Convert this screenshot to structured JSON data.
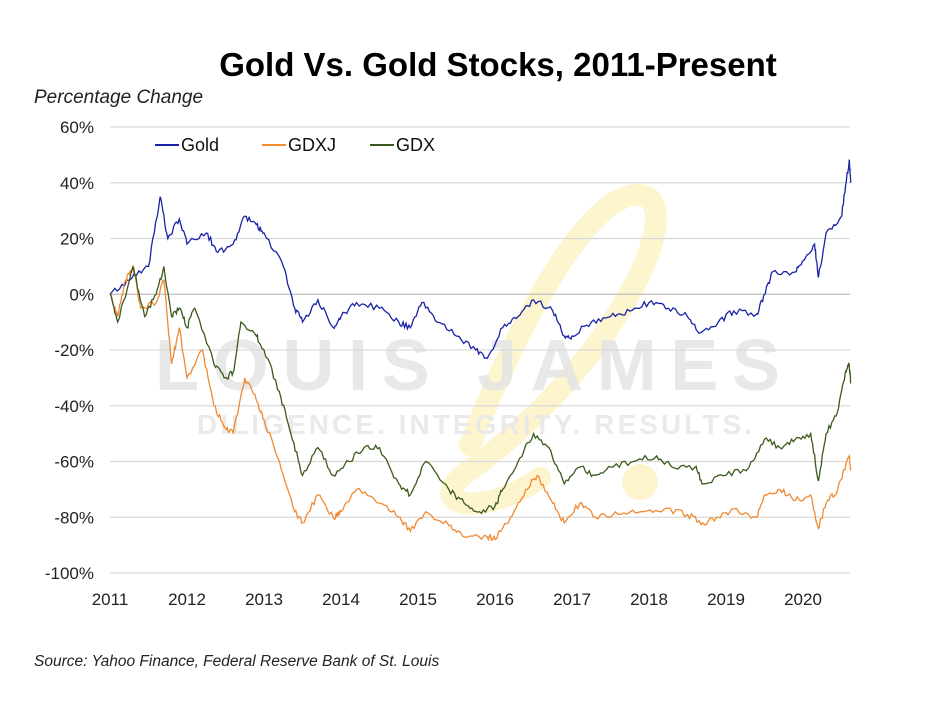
{
  "chart_data": {
    "type": "line",
    "title": "Gold Vs. Gold Stocks, 2011-Present",
    "ylabel": "Percentage Change",
    "xlabel": "",
    "source": "Source: Yahoo Finance, Federal Reserve Bank of St. Louis",
    "watermark": {
      "name": "LOUIS JAMES",
      "tagline": "DILIGENCE. INTEGRITY. RESULTS.",
      "monogram": "ℒ"
    },
    "xlim": [
      2011,
      2020.65
    ],
    "ylim": [
      -100,
      60
    ],
    "x_ticks": [
      "2011",
      "2012",
      "2013",
      "2014",
      "2015",
      "2016",
      "2017",
      "2018",
      "2019",
      "2020"
    ],
    "y_ticks": [
      "60%",
      "40%",
      "20%",
      "0%",
      "-20%",
      "-40%",
      "-60%",
      "-80%",
      "-100%"
    ],
    "y_tick_values": [
      60,
      40,
      20,
      0,
      -20,
      -40,
      -60,
      -80,
      -100
    ],
    "grid": "horizontal",
    "legend_position": "top-left",
    "series": [
      {
        "name": "Gold",
        "color": "#1a23a8",
        "points": [
          [
            2011.0,
            0
          ],
          [
            2011.25,
            5
          ],
          [
            2011.5,
            10
          ],
          [
            2011.65,
            35
          ],
          [
            2011.75,
            20
          ],
          [
            2011.9,
            27
          ],
          [
            2012.0,
            18
          ],
          [
            2012.25,
            22
          ],
          [
            2012.4,
            15
          ],
          [
            2012.6,
            18
          ],
          [
            2012.75,
            28
          ],
          [
            2012.9,
            25
          ],
          [
            2013.0,
            22
          ],
          [
            2013.25,
            10
          ],
          [
            2013.4,
            -5
          ],
          [
            2013.5,
            -10
          ],
          [
            2013.7,
            -2
          ],
          [
            2013.9,
            -12
          ],
          [
            2014.0,
            -8
          ],
          [
            2014.2,
            -3
          ],
          [
            2014.5,
            -5
          ],
          [
            2014.75,
            -10
          ],
          [
            2014.9,
            -12
          ],
          [
            2015.05,
            -3
          ],
          [
            2015.25,
            -10
          ],
          [
            2015.5,
            -15
          ],
          [
            2015.75,
            -20
          ],
          [
            2015.9,
            -23
          ],
          [
            2016.1,
            -12
          ],
          [
            2016.3,
            -8
          ],
          [
            2016.5,
            -2
          ],
          [
            2016.75,
            -6
          ],
          [
            2016.9,
            -15
          ],
          [
            2017.0,
            -15
          ],
          [
            2017.25,
            -10
          ],
          [
            2017.5,
            -8
          ],
          [
            2017.75,
            -6
          ],
          [
            2018.0,
            -3
          ],
          [
            2018.25,
            -5
          ],
          [
            2018.5,
            -8
          ],
          [
            2018.65,
            -14
          ],
          [
            2018.9,
            -10
          ],
          [
            2019.1,
            -6
          ],
          [
            2019.4,
            -7
          ],
          [
            2019.5,
            0
          ],
          [
            2019.6,
            8
          ],
          [
            2019.9,
            8
          ],
          [
            2020.0,
            12
          ],
          [
            2020.15,
            18
          ],
          [
            2020.2,
            6
          ],
          [
            2020.3,
            22
          ],
          [
            2020.5,
            28
          ],
          [
            2020.55,
            38
          ],
          [
            2020.6,
            48
          ],
          [
            2020.62,
            40
          ]
        ]
      },
      {
        "name": "GDXJ",
        "color": "#f08a33",
        "points": [
          [
            2011.0,
            0
          ],
          [
            2011.1,
            -8
          ],
          [
            2011.2,
            5
          ],
          [
            2011.3,
            10
          ],
          [
            2011.4,
            -5
          ],
          [
            2011.6,
            -3
          ],
          [
            2011.7,
            5
          ],
          [
            2011.8,
            -25
          ],
          [
            2011.9,
            -12
          ],
          [
            2012.0,
            -30
          ],
          [
            2012.2,
            -20
          ],
          [
            2012.35,
            -40
          ],
          [
            2012.5,
            -48
          ],
          [
            2012.6,
            -50
          ],
          [
            2012.75,
            -30
          ],
          [
            2012.9,
            -38
          ],
          [
            2013.0,
            -45
          ],
          [
            2013.2,
            -60
          ],
          [
            2013.4,
            -78
          ],
          [
            2013.5,
            -82
          ],
          [
            2013.7,
            -72
          ],
          [
            2013.9,
            -80
          ],
          [
            2014.0,
            -78
          ],
          [
            2014.2,
            -70
          ],
          [
            2014.5,
            -75
          ],
          [
            2014.75,
            -80
          ],
          [
            2014.9,
            -85
          ],
          [
            2015.1,
            -78
          ],
          [
            2015.4,
            -83
          ],
          [
            2015.6,
            -87
          ],
          [
            2015.9,
            -87
          ],
          [
            2016.0,
            -88
          ],
          [
            2016.2,
            -80
          ],
          [
            2016.4,
            -70
          ],
          [
            2016.55,
            -65
          ],
          [
            2016.75,
            -75
          ],
          [
            2016.9,
            -82
          ],
          [
            2017.1,
            -75
          ],
          [
            2017.3,
            -80
          ],
          [
            2017.6,
            -79
          ],
          [
            2017.9,
            -78
          ],
          [
            2018.2,
            -77
          ],
          [
            2018.5,
            -79
          ],
          [
            2018.7,
            -82
          ],
          [
            2018.9,
            -80
          ],
          [
            2019.1,
            -77
          ],
          [
            2019.4,
            -80
          ],
          [
            2019.5,
            -72
          ],
          [
            2019.7,
            -70
          ],
          [
            2019.9,
            -74
          ],
          [
            2020.1,
            -72
          ],
          [
            2020.2,
            -84
          ],
          [
            2020.3,
            -75
          ],
          [
            2020.45,
            -70
          ],
          [
            2020.6,
            -58
          ],
          [
            2020.62,
            -63
          ]
        ]
      },
      {
        "name": "GDX",
        "color": "#3a5a1e",
        "points": [
          [
            2011.0,
            0
          ],
          [
            2011.1,
            -10
          ],
          [
            2011.3,
            10
          ],
          [
            2011.45,
            -8
          ],
          [
            2011.6,
            0
          ],
          [
            2011.7,
            10
          ],
          [
            2011.8,
            -8
          ],
          [
            2011.9,
            -5
          ],
          [
            2012.0,
            -12
          ],
          [
            2012.1,
            -5
          ],
          [
            2012.35,
            -25
          ],
          [
            2012.5,
            -30
          ],
          [
            2012.6,
            -28
          ],
          [
            2012.7,
            -10
          ],
          [
            2012.9,
            -15
          ],
          [
            2013.0,
            -20
          ],
          [
            2013.2,
            -35
          ],
          [
            2013.35,
            -50
          ],
          [
            2013.5,
            -65
          ],
          [
            2013.7,
            -55
          ],
          [
            2013.9,
            -65
          ],
          [
            2014.1,
            -60
          ],
          [
            2014.3,
            -55
          ],
          [
            2014.5,
            -55
          ],
          [
            2014.75,
            -68
          ],
          [
            2014.9,
            -72
          ],
          [
            2015.1,
            -60
          ],
          [
            2015.4,
            -70
          ],
          [
            2015.6,
            -75
          ],
          [
            2015.8,
            -78
          ],
          [
            2016.0,
            -76
          ],
          [
            2016.1,
            -70
          ],
          [
            2016.3,
            -60
          ],
          [
            2016.5,
            -50
          ],
          [
            2016.7,
            -55
          ],
          [
            2016.9,
            -68
          ],
          [
            2017.1,
            -62
          ],
          [
            2017.3,
            -65
          ],
          [
            2017.5,
            -62
          ],
          [
            2017.8,
            -60
          ],
          [
            2018.1,
            -58
          ],
          [
            2018.3,
            -62
          ],
          [
            2018.6,
            -62
          ],
          [
            2018.7,
            -68
          ],
          [
            2019.0,
            -65
          ],
          [
            2019.3,
            -62
          ],
          [
            2019.5,
            -52
          ],
          [
            2019.7,
            -55
          ],
          [
            2019.9,
            -52
          ],
          [
            2020.1,
            -50
          ],
          [
            2020.2,
            -67
          ],
          [
            2020.3,
            -50
          ],
          [
            2020.45,
            -42
          ],
          [
            2020.55,
            -28
          ],
          [
            2020.6,
            -25
          ],
          [
            2020.62,
            -32
          ]
        ]
      }
    ]
  }
}
